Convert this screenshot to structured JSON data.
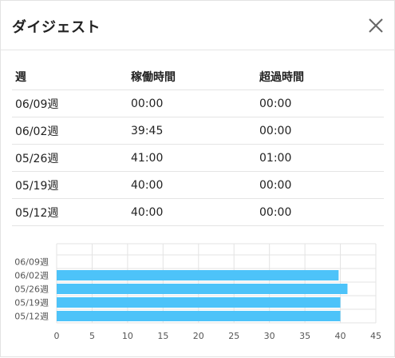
{
  "dialog": {
    "title": "ダイジェスト"
  },
  "table": {
    "headers": [
      "週",
      "稼働時間",
      "超過時間"
    ],
    "rows": [
      [
        "06/09週",
        "00:00",
        "00:00"
      ],
      [
        "06/02週",
        "39:45",
        "00:00"
      ],
      [
        "05/26週",
        "41:00",
        "01:00"
      ],
      [
        "05/19週",
        "40:00",
        "00:00"
      ],
      [
        "05/12週",
        "40:00",
        "00:00"
      ]
    ]
  },
  "colors": {
    "bar": "#4dc3f9",
    "grid": "#e3e3e3",
    "axis_text": "#555555"
  },
  "chart_data": {
    "type": "bar",
    "orientation": "horizontal",
    "categories": [
      "06/09週",
      "06/02週",
      "05/26週",
      "05/19週",
      "05/12週"
    ],
    "values": [
      0,
      39.75,
      41,
      40,
      40
    ],
    "xlim": [
      0,
      45
    ],
    "xticks": [
      "0",
      "5",
      "10",
      "15",
      "20",
      "25",
      "30",
      "35",
      "40",
      "45"
    ],
    "grid": true
  }
}
